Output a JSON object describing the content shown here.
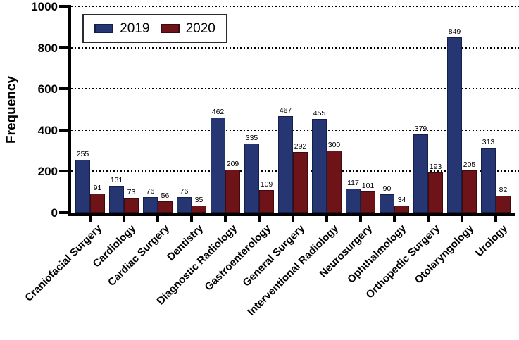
{
  "chart_data": {
    "type": "bar",
    "title": "",
    "ylabel": "Frequency",
    "xlabel": "",
    "ylim": [
      0,
      1000
    ],
    "yticks": [
      0,
      200,
      400,
      600,
      800,
      1000
    ],
    "gridlines": "horizontal-dotted",
    "bar_value_labels": true,
    "legend_position": "top-left-inside",
    "background": "#ffffff",
    "axis_color": "#000000",
    "categories": [
      "Craniofacial Surgery",
      "Cardiology",
      "Cardiac Surgery",
      "Dentistry",
      "Diagnostic Radiology",
      "Gastroenterology",
      "General Surgery",
      "Interventional Radiology",
      "Neurosurgery",
      "Ophthalmology",
      "Orthopedic Surgery",
      "Otolaryngology",
      "Urology"
    ],
    "series": [
      {
        "name": "2019",
        "color": "#263673",
        "border_color": "#161f4a",
        "values": [
          255,
          131,
          76,
          76,
          462,
          335,
          467,
          455,
          117,
          90,
          379,
          849,
          313
        ]
      },
      {
        "name": "2020",
        "color": "#6e1317",
        "border_color": "#3d0a0d",
        "values": [
          91,
          73,
          56,
          35,
          209,
          109,
          292,
          300,
          101,
          34,
          193,
          205,
          82
        ]
      }
    ]
  }
}
